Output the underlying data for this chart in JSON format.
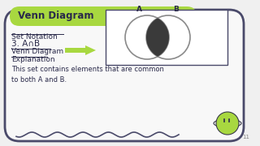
{
  "bg_color": "#f0f0f0",
  "outer_border_color": "#4a4a6a",
  "header_bg": "#a8d840",
  "header_text": "Venn Diagram",
  "header_text_color": "#2a2a4a",
  "label_set_notation": "Set Notation",
  "label_notation": "3. A∩B",
  "label_venn": "Venn Diagram",
  "label_explanation": "Explanation",
  "label_body": "This set contains elements that are common\nto both A and B.",
  "text_color": "#2a2a4a",
  "arrow_color": "#a8d840",
  "venn_circle_color": "#8a8a8a",
  "venn_intersect_color": "#3a3a3a",
  "venn_bg": "#ffffff",
  "venn_border": "#4a4a6a",
  "label_A": "A",
  "label_B": "B",
  "page_num": "11"
}
